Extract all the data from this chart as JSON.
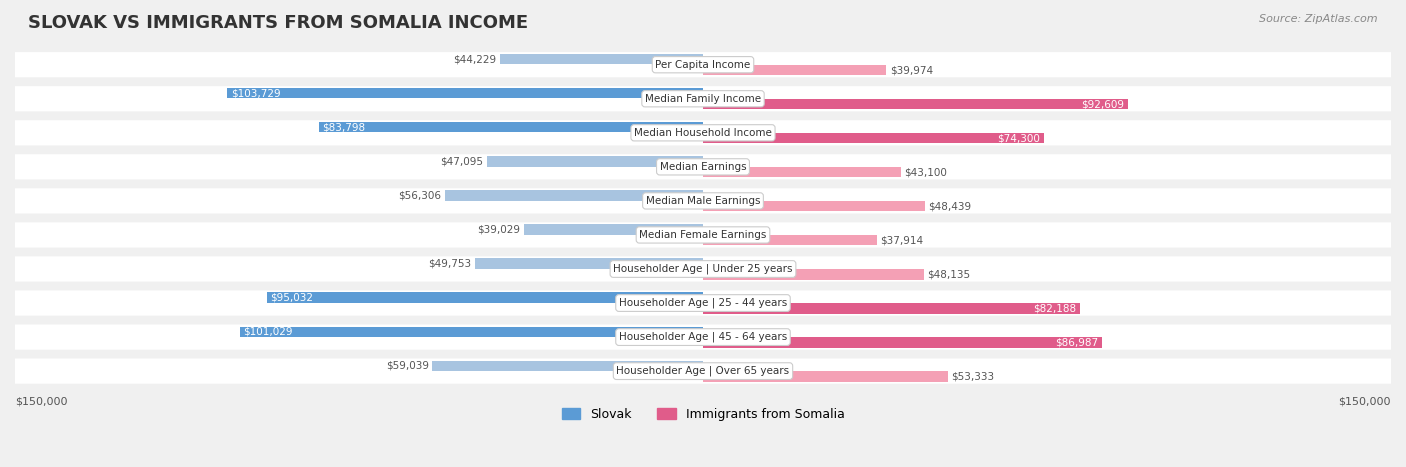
{
  "title": "SLOVAK VS IMMIGRANTS FROM SOMALIA INCOME",
  "source": "Source: ZipAtlas.com",
  "categories": [
    "Per Capita Income",
    "Median Family Income",
    "Median Household Income",
    "Median Earnings",
    "Median Male Earnings",
    "Median Female Earnings",
    "Householder Age | Under 25 years",
    "Householder Age | 25 - 44 years",
    "Householder Age | 45 - 64 years",
    "Householder Age | Over 65 years"
  ],
  "slovak_values": [
    44229,
    103729,
    83798,
    47095,
    56306,
    39029,
    49753,
    95032,
    101029,
    59039
  ],
  "somalia_values": [
    39974,
    92609,
    74300,
    43100,
    48439,
    37914,
    48135,
    82188,
    86987,
    53333
  ],
  "max_value": 150000,
  "slovak_color_light": "#a8c4e0",
  "slovak_color_dark": "#5b9bd5",
  "somalia_color_light": "#f4a0b5",
  "somalia_color_dark": "#e05c8a",
  "label_color_light": "#555555",
  "label_color_white": "#ffffff",
  "bg_color": "#f0f0f0",
  "row_bg_color": "#f7f7f7",
  "threshold_slovak": 80000,
  "threshold_somalia": 65000,
  "legend_slovak": "Slovak",
  "legend_somalia": "Immigrants from Somalia",
  "ylabel_left": "$150,000",
  "ylabel_right": "$150,000"
}
